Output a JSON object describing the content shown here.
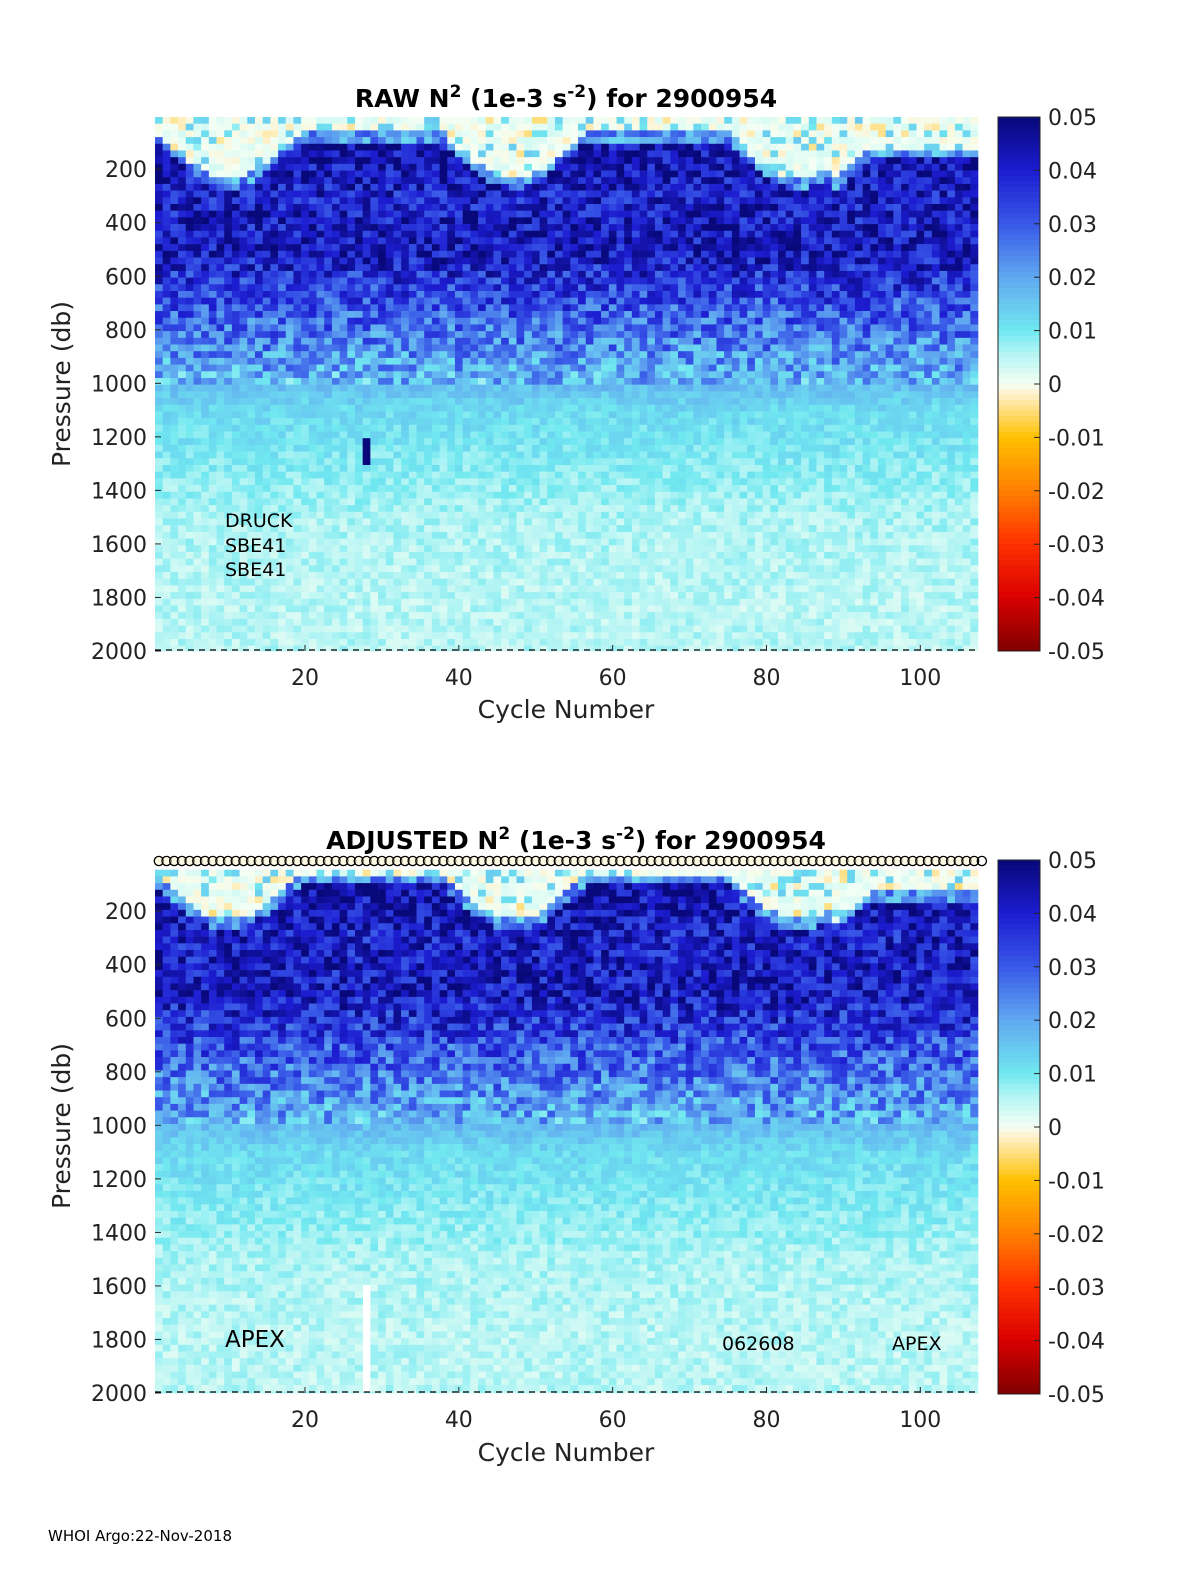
{
  "footer": "WHOI Argo:22-Nov-2018",
  "colorbar": {
    "ticks": [
      "0.05",
      "0.04",
      "0.03",
      "0.02",
      "0.01",
      "0",
      "-0.01",
      "-0.02",
      "-0.03",
      "-0.04",
      "-0.05"
    ],
    "range": [
      -0.05,
      0.05
    ],
    "stops": [
      {
        "v": -0.05,
        "c": "#7f0000"
      },
      {
        "v": -0.04,
        "c": "#d90000"
      },
      {
        "v": -0.03,
        "c": "#ff3000"
      },
      {
        "v": -0.02,
        "c": "#ff8000"
      },
      {
        "v": -0.01,
        "c": "#ffc000"
      },
      {
        "v": -0.002,
        "c": "#fff0c8"
      },
      {
        "v": 0.0,
        "c": "#f4fff4"
      },
      {
        "v": 0.006,
        "c": "#b0f4f4"
      },
      {
        "v": 0.01,
        "c": "#70e8f0"
      },
      {
        "v": 0.02,
        "c": "#60a8f0"
      },
      {
        "v": 0.03,
        "c": "#3858e8"
      },
      {
        "v": 0.04,
        "c": "#1c1cd0"
      },
      {
        "v": 0.05,
        "c": "#08087a"
      }
    ]
  },
  "chart_data": [
    {
      "type": "heatmap",
      "title_parts": {
        "prefix": "RAW N",
        "sup1": "2",
        "mid": " (1e-3 s",
        "sup2": "-2",
        "suffix": ") for 2900954"
      },
      "xlabel": "Cycle Number",
      "ylabel": "Pressure (db)",
      "xlim": [
        1,
        107
      ],
      "ylim": [
        2000,
        5
      ],
      "xticks": [
        "20",
        "40",
        "60",
        "80",
        "100"
      ],
      "yticks": [
        "200",
        "400",
        "600",
        "800",
        "1000",
        "1200",
        "1400",
        "1600",
        "1800",
        "2000"
      ],
      "cycles": 107,
      "pressure_bin_db": 25,
      "mean_profile": {
        "pressure": [
          25,
          100,
          300,
          500,
          700,
          900,
          1100,
          1300,
          1500,
          1800,
          2000
        ],
        "n2": [
          0.03,
          0.045,
          0.04,
          0.042,
          0.032,
          0.022,
          0.012,
          0.009,
          0.006,
          0.005,
          0.005
        ]
      },
      "anomalies": [
        {
          "cycle": 28,
          "pmin": 1200,
          "pmax": 1300,
          "value": 0.05
        }
      ],
      "annotations": [
        "DRUCK",
        "SBE41",
        "SBE41"
      ]
    },
    {
      "type": "heatmap",
      "title_parts": {
        "prefix": "ADJUSTED N",
        "sup1": "2",
        "mid": " (1e-3 s",
        "sup2": "-2",
        "suffix": ") for 2900954"
      },
      "xlabel": "Cycle Number",
      "ylabel": "Pressure (db)",
      "xlim": [
        1,
        107
      ],
      "ylim": [
        2000,
        5
      ],
      "xticks": [
        "20",
        "40",
        "60",
        "80",
        "100"
      ],
      "yticks": [
        "200",
        "400",
        "600",
        "800",
        "1000",
        "1200",
        "1400",
        "1600",
        "1800",
        "2000"
      ],
      "cycles": 107,
      "pressure_bin_db": 25,
      "mean_profile": {
        "pressure": [
          25,
          100,
          300,
          500,
          700,
          900,
          1100,
          1300,
          1500,
          1800,
          2000
        ],
        "n2": [
          0.03,
          0.045,
          0.04,
          0.042,
          0.032,
          0.022,
          0.012,
          0.009,
          0.006,
          0.005,
          0.005
        ]
      },
      "anomalies": [
        {
          "cycle": 28,
          "pmin": 1600,
          "pmax": 2000,
          "value": null
        }
      ],
      "qc_markers": "circle per cycle at top",
      "annotations": [
        "APEX",
        "062608",
        "APEX"
      ]
    }
  ]
}
